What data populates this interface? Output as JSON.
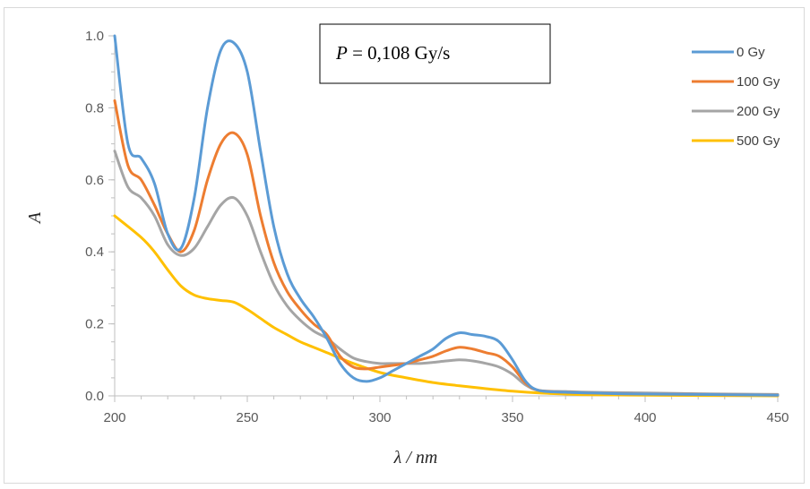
{
  "chart_data": {
    "type": "line",
    "title": "",
    "xlabel": "λ / nm",
    "ylabel": "A",
    "xlim": [
      200,
      450
    ],
    "ylim": [
      0,
      1.0
    ],
    "xticks": [
      200,
      250,
      300,
      350,
      400,
      450
    ],
    "yticks": [
      0.0,
      0.2,
      0.4,
      0.6,
      0.8,
      1.0
    ],
    "ytick_labels": [
      "0.0",
      "0.2",
      "0.4",
      "0.6",
      "0.8",
      "1.0"
    ],
    "grid": false,
    "legend_position": "top-right",
    "annotation": {
      "symbol": "P",
      "text": " = 0,108 Gy/s"
    },
    "series": [
      {
        "name": "0 Gy",
        "color": "#5b9bd5",
        "x": [
          200,
          205,
          210,
          215,
          220,
          225,
          230,
          235,
          240,
          245,
          250,
          255,
          260,
          265,
          270,
          275,
          280,
          285,
          290,
          295,
          300,
          305,
          310,
          315,
          320,
          325,
          330,
          335,
          340,
          345,
          350,
          355,
          360,
          370,
          380,
          390,
          400,
          420,
          450
        ],
        "y": [
          1.0,
          0.7,
          0.66,
          0.59,
          0.45,
          0.41,
          0.55,
          0.8,
          0.96,
          0.98,
          0.9,
          0.68,
          0.47,
          0.34,
          0.27,
          0.22,
          0.16,
          0.09,
          0.05,
          0.04,
          0.05,
          0.07,
          0.09,
          0.11,
          0.13,
          0.16,
          0.175,
          0.17,
          0.165,
          0.15,
          0.1,
          0.04,
          0.015,
          0.01,
          0.008,
          0.006,
          0.005,
          0.004,
          0.002
        ]
      },
      {
        "name": "100 Gy",
        "color": "#ed7d31",
        "x": [
          200,
          205,
          210,
          215,
          220,
          225,
          230,
          235,
          240,
          245,
          250,
          255,
          260,
          265,
          270,
          275,
          280,
          285,
          290,
          295,
          300,
          305,
          310,
          315,
          320,
          325,
          330,
          335,
          340,
          345,
          350,
          355,
          360,
          370,
          380,
          390,
          400,
          420,
          450
        ],
        "y": [
          0.82,
          0.64,
          0.6,
          0.53,
          0.45,
          0.4,
          0.46,
          0.6,
          0.7,
          0.73,
          0.67,
          0.5,
          0.37,
          0.29,
          0.24,
          0.2,
          0.17,
          0.11,
          0.08,
          0.075,
          0.08,
          0.085,
          0.09,
          0.1,
          0.11,
          0.125,
          0.135,
          0.13,
          0.12,
          0.11,
          0.08,
          0.035,
          0.015,
          0.01,
          0.008,
          0.006,
          0.005,
          0.004,
          0.002
        ]
      },
      {
        "name": "200 Gy",
        "color": "#a5a5a5",
        "x": [
          200,
          205,
          210,
          215,
          220,
          225,
          230,
          235,
          240,
          245,
          250,
          255,
          260,
          265,
          270,
          275,
          280,
          285,
          290,
          295,
          300,
          305,
          310,
          315,
          320,
          325,
          330,
          335,
          340,
          345,
          350,
          355,
          360,
          370,
          380,
          390,
          400,
          420,
          450
        ],
        "y": [
          0.68,
          0.58,
          0.55,
          0.5,
          0.42,
          0.39,
          0.41,
          0.47,
          0.53,
          0.55,
          0.5,
          0.4,
          0.31,
          0.25,
          0.21,
          0.18,
          0.16,
          0.13,
          0.105,
          0.095,
          0.09,
          0.09,
          0.09,
          0.09,
          0.093,
          0.097,
          0.1,
          0.097,
          0.09,
          0.08,
          0.06,
          0.03,
          0.015,
          0.012,
          0.01,
          0.009,
          0.008,
          0.006,
          0.004
        ]
      },
      {
        "name": "500 Gy",
        "color": "#ffc000",
        "x": [
          200,
          210,
          215,
          220,
          225,
          230,
          235,
          240,
          245,
          250,
          255,
          260,
          265,
          270,
          275,
          280,
          290,
          300,
          310,
          320,
          330,
          340,
          350,
          360,
          370,
          380,
          400,
          420,
          450
        ],
        "y": [
          0.5,
          0.44,
          0.4,
          0.35,
          0.305,
          0.28,
          0.27,
          0.265,
          0.26,
          0.24,
          0.215,
          0.19,
          0.17,
          0.15,
          0.135,
          0.12,
          0.09,
          0.065,
          0.05,
          0.037,
          0.028,
          0.02,
          0.013,
          0.008,
          0.005,
          0.003,
          0.002,
          0.001,
          0.0
        ]
      }
    ]
  }
}
